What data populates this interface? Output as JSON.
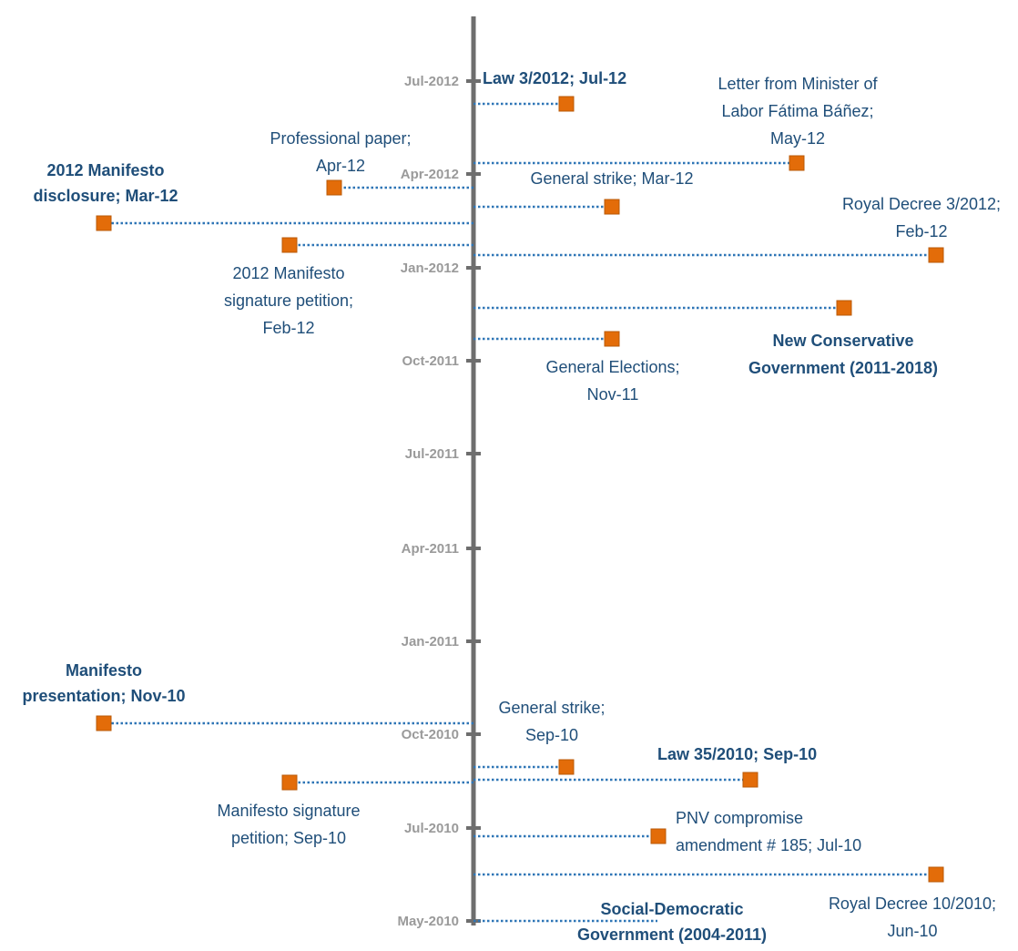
{
  "chart_data": {
    "type": "timeline",
    "axis_ticks": [
      "Jul-2012",
      "Apr-2012",
      "Jan-2012",
      "Oct-2011",
      "Jul-2011",
      "Apr-2011",
      "Jan-2011",
      "Oct-2010",
      "Jul-2010",
      "May-2010"
    ],
    "events": [
      {
        "name": "law-3-2012",
        "lines": [
          "Law 3/2012; Jul-12"
        ],
        "bold": true
      },
      {
        "name": "letter-minister-labor",
        "lines": [
          "Letter from Minister of",
          "Labor Fátima Báñez;",
          "May-12"
        ],
        "bold": false
      },
      {
        "name": "professional-paper",
        "lines": [
          "Professional paper;",
          "Apr-12"
        ],
        "bold": false
      },
      {
        "name": "manifesto-2012-disclosure",
        "lines": [
          "2012 Manifesto",
          "disclosure; Mar-12"
        ],
        "bold": true
      },
      {
        "name": "general-strike-mar-12",
        "lines": [
          "General strike; Mar-12"
        ],
        "bold": false
      },
      {
        "name": "royal-decree-3-2012",
        "lines": [
          "Royal Decree 3/2012;",
          "Feb-12"
        ],
        "bold": false
      },
      {
        "name": "manifesto-2012-signature-petition",
        "lines": [
          "2012 Manifesto",
          "signature petition;",
          "Feb-12"
        ],
        "bold": false
      },
      {
        "name": "new-conservative-government",
        "lines": [
          "New Conservative",
          "Government (2011-2018)"
        ],
        "bold": true
      },
      {
        "name": "general-elections",
        "lines": [
          "General Elections;",
          "Nov-11"
        ],
        "bold": false
      },
      {
        "name": "manifesto-presentation",
        "lines": [
          "Manifesto",
          "presentation; Nov-10"
        ],
        "bold": true
      },
      {
        "name": "general-strike-sep-10",
        "lines": [
          "General strike;",
          "Sep-10"
        ],
        "bold": false
      },
      {
        "name": "law-35-2010",
        "lines": [
          "Law 35/2010; Sep-10"
        ],
        "bold": true
      },
      {
        "name": "manifesto-signature-petition",
        "lines": [
          "Manifesto signature",
          "petition; Sep-10"
        ],
        "bold": false
      },
      {
        "name": "pnv-compromise-amendment",
        "lines": [
          "PNV compromise",
          "amendment # 185; Jul-10"
        ],
        "bold": false
      },
      {
        "name": "royal-decree-10-2010",
        "lines": [
          "Royal Decree 10/2010;",
          "Jun-10"
        ],
        "bold": false
      },
      {
        "name": "social-democratic-government",
        "lines": [
          "Social-Democratic",
          "Government (2004-2011)"
        ],
        "bold": true
      }
    ]
  },
  "colors": {
    "axis": "#6e6e6e",
    "tick_label": "#9a9a9a",
    "marker": "#e36c09",
    "marker_stroke": "#b85a08",
    "connector": "#2e75b6",
    "label": "#1f4e79"
  }
}
